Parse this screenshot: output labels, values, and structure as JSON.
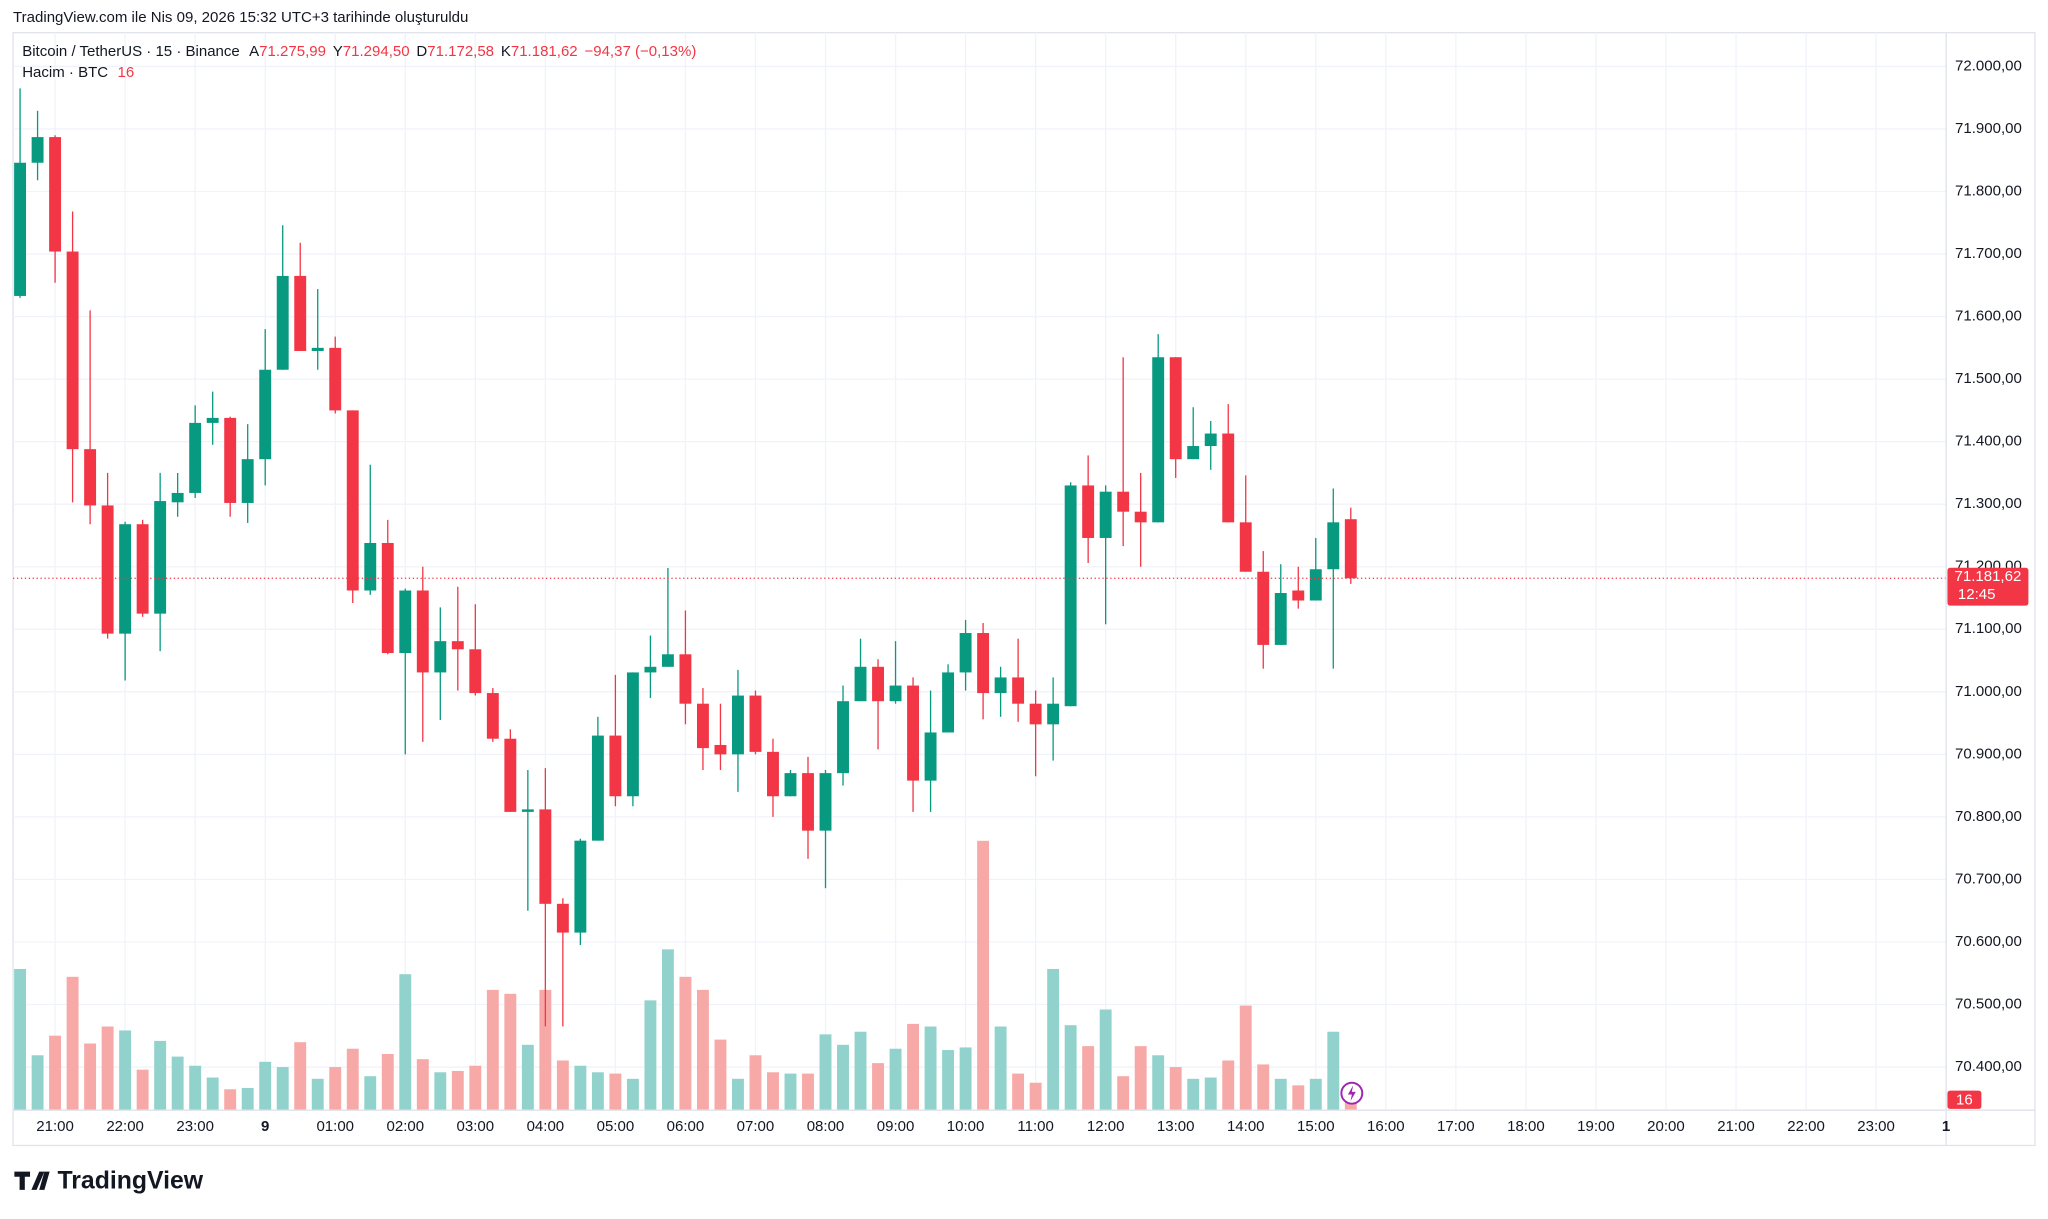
{
  "header": {
    "caption": "TradingView.com ile Nis 09, 2026 15:32 UTC+3 tarihinde oluşturuldu"
  },
  "footer": {
    "logo": "TradingView"
  },
  "legend": {
    "symbol": "Bitcoin / TetherUS · 15 · Binance",
    "ohlc": [
      {
        "key": "A",
        "value": "71.275,99"
      },
      {
        "key": "Y",
        "value": "71.294,50"
      },
      {
        "key": "D",
        "value": "71.172,58"
      },
      {
        "key": "K",
        "value": "71.181,62"
      }
    ],
    "change": "−94,37 (−0,13%)",
    "volume_title": "Hacim · BTC",
    "volume_value": "16"
  },
  "chart_data": {
    "type": "candlestick",
    "up_color": "#089981",
    "down_color": "#f23645",
    "volume_up_color": "#92d2cc",
    "volume_down_color": "#f7a9a7",
    "grid": true,
    "x": [
      20.5,
      20.75,
      21,
      21.25,
      21.5,
      21.75,
      22,
      22.25,
      22.5,
      22.75,
      23,
      23.25,
      23.5,
      23.75,
      24,
      24.25,
      24.5,
      24.75,
      25,
      25.25,
      25.5,
      25.75,
      26,
      26.25,
      26.5,
      26.75,
      27,
      27.25,
      27.5,
      27.75,
      28,
      28.25,
      28.5,
      28.75,
      29,
      29.25,
      29.5,
      29.75,
      30,
      30.25,
      30.5,
      30.75,
      31,
      31.25,
      31.5,
      31.75,
      32,
      32.25,
      32.5,
      32.75,
      33,
      33.25,
      33.5,
      33.75,
      34,
      34.25,
      34.5,
      34.75,
      35,
      35.25,
      35.5,
      35.75,
      36,
      36.25,
      36.5,
      36.75,
      37,
      37.25,
      37.5,
      37.75,
      38,
      38.25,
      38.5,
      38.75,
      39,
      39.25,
      39.5
    ],
    "open": [
      71633,
      71846,
      71887,
      71704,
      71388,
      71298,
      71093,
      71268,
      71125,
      71303,
      71318,
      71430,
      71438,
      71302,
      71372,
      71515,
      71665,
      71545,
      71550,
      71450,
      71162,
      71238,
      71062,
      71162,
      71031,
      71081,
      71068,
      70998,
      70925,
      70808,
      70812,
      70661,
      70615,
      70762,
      70930,
      70833,
      71031,
      71040,
      71060,
      70981,
      70915,
      70900,
      70994,
      70904,
      70833,
      70870,
      70778,
      70870,
      70985,
      71040,
      70985,
      71010,
      70858,
      70935,
      71031,
      71094,
      70998,
      71023,
      70981,
      70948,
      70977,
      71330,
      71246,
      71320,
      71288,
      71271,
      71535,
      71372,
      71393,
      71413,
      71271,
      71192,
      71075,
      71162,
      71146,
      71196,
      71275.99
    ],
    "high": [
      71965,
      71929,
      71890,
      71768,
      71610,
      71350,
      71272,
      71275,
      71350,
      71350,
      71458,
      71480,
      71440,
      71428,
      71580,
      71746,
      71718,
      71644,
      71568,
      71450,
      71363,
      71275,
      71165,
      71200,
      71135,
      71168,
      71140,
      71006,
      70940,
      70875,
      70878,
      70670,
      70765,
      70960,
      71027,
      71031,
      71090,
      71198,
      71130,
      71006,
      70981,
      71035,
      71002,
      70925,
      70875,
      70896,
      70875,
      71010,
      71085,
      71052,
      71081,
      71023,
      71002,
      71044,
      71115,
      71110,
      71040,
      71085,
      71002,
      71023,
      71335,
      71378,
      71330,
      71535,
      71350,
      71572,
      71535,
      71455,
      71433,
      71460,
      71346,
      71225,
      71204,
      71200,
      71246,
      71325,
      71294.5
    ],
    "low": [
      71630,
      71818,
      71654,
      71303,
      71268,
      71085,
      71018,
      71120,
      71065,
      71280,
      71310,
      71395,
      71280,
      71270,
      71330,
      71515,
      71545,
      71515,
      71445,
      71142,
      71155,
      71060,
      70900,
      70920,
      70955,
      71002,
      70994,
      70920,
      70808,
      70650,
      70465,
      70465,
      70595,
      70762,
      70817,
      70817,
      70990,
      71040,
      70948,
      70875,
      70875,
      70840,
      70900,
      70800,
      70833,
      70733,
      70686,
      70850,
      70985,
      70908,
      70981,
      70808,
      70808,
      70935,
      71002,
      70956,
      70960,
      70952,
      70865,
      70890,
      70977,
      71206,
      71108,
      71233,
      71200,
      71271,
      71342,
      71372,
      71355,
      71271,
      71192,
      71037,
      71075,
      71133,
      71146,
      71037,
      71172.58
    ],
    "close": [
      71846,
      71887,
      71704,
      71388,
      71298,
      71093,
      71268,
      71125,
      71305,
      71318,
      71430,
      71438,
      71302,
      71372,
      71515,
      71665,
      71545,
      71550,
      71450,
      71162,
      71238,
      71062,
      71162,
      71031,
      71081,
      71068,
      70998,
      70925,
      70808,
      70812,
      70661,
      70615,
      70762,
      70930,
      70833,
      71031,
      71040,
      71060,
      70981,
      70910,
      70900,
      70994,
      70904,
      70833,
      70870,
      70778,
      70870,
      70985,
      71040,
      70985,
      71010,
      70858,
      70935,
      71031,
      71094,
      70998,
      71023,
      70981,
      70948,
      70981,
      71330,
      71246,
      71320,
      71288,
      71271,
      71535,
      71372,
      71393,
      71413,
      71271,
      71192,
      71075,
      71158,
      71146,
      71196,
      71271,
      71181.62
    ],
    "volume": [
      216,
      84,
      114,
      204,
      102,
      128,
      122,
      62,
      106,
      82,
      68,
      50,
      32,
      34,
      74,
      66,
      104,
      48,
      66,
      94,
      52,
      86,
      208,
      78,
      58,
      60,
      68,
      184,
      178,
      100,
      184,
      76,
      68,
      58,
      56,
      48,
      168,
      246,
      204,
      184,
      108,
      48,
      84,
      58,
      56,
      56,
      116,
      100,
      120,
      72,
      94,
      132,
      128,
      92,
      96,
      412,
      128,
      56,
      42,
      216,
      130,
      98,
      154,
      52,
      98,
      84,
      66,
      48,
      50,
      76,
      160,
      70,
      48,
      38,
      48,
      120,
      16
    ],
    "last_price_label": "71.181,62",
    "countdown": "12:45",
    "xlim": [
      20.4,
      48
    ],
    "xticks": [
      {
        "value": 21,
        "label": "21:00"
      },
      {
        "value": 22,
        "label": "22:00"
      },
      {
        "value": 23,
        "label": "23:00"
      },
      {
        "value": 24,
        "label": "9"
      },
      {
        "value": 25,
        "label": "01:00"
      },
      {
        "value": 26,
        "label": "02:00"
      },
      {
        "value": 27,
        "label": "03:00"
      },
      {
        "value": 28,
        "label": "04:00"
      },
      {
        "value": 29,
        "label": "05:00"
      },
      {
        "value": 30,
        "label": "06:00"
      },
      {
        "value": 31,
        "label": "07:00"
      },
      {
        "value": 32,
        "label": "08:00"
      },
      {
        "value": 33,
        "label": "09:00"
      },
      {
        "value": 34,
        "label": "10:00"
      },
      {
        "value": 35,
        "label": "11:00"
      },
      {
        "value": 36,
        "label": "12:00"
      },
      {
        "value": 37,
        "label": "13:00"
      },
      {
        "value": 38,
        "label": "14:00"
      },
      {
        "value": 39,
        "label": "15:00"
      },
      {
        "value": 40,
        "label": "16:00"
      },
      {
        "value": 41,
        "label": "17:00"
      },
      {
        "value": 42,
        "label": "18:00"
      },
      {
        "value": 43,
        "label": "19:00"
      },
      {
        "value": 44,
        "label": "20:00"
      },
      {
        "value": 45,
        "label": "21:00"
      },
      {
        "value": 46,
        "label": "22:00"
      },
      {
        "value": 47,
        "label": "23:00"
      },
      {
        "value": 48,
        "label": "1"
      }
    ],
    "ylim": [
      70331,
      72054
    ],
    "yticks": [
      {
        "value": 70400,
        "label": "70.400,00"
      },
      {
        "value": 70500,
        "label": "70.500,00"
      },
      {
        "value": 70600,
        "label": "70.600,00"
      },
      {
        "value": 70700,
        "label": "70.700,00"
      },
      {
        "value": 70800,
        "label": "70.800,00"
      },
      {
        "value": 70900,
        "label": "70.900,00"
      },
      {
        "value": 71000,
        "label": "71.000,00"
      },
      {
        "value": 71100,
        "label": "71.100,00"
      },
      {
        "value": 71200,
        "label": "71.200,00"
      },
      {
        "value": 71300,
        "label": "71.300,00"
      },
      {
        "value": 71400,
        "label": "71.400,00"
      },
      {
        "value": 71500,
        "label": "71.500,00"
      },
      {
        "value": 71600,
        "label": "71.600,00"
      },
      {
        "value": 71700,
        "label": "71.700,00"
      },
      {
        "value": 71800,
        "label": "71.800,00"
      },
      {
        "value": 71900,
        "label": "71.900,00"
      },
      {
        "value": 72000,
        "label": "72.000,00"
      }
    ]
  }
}
